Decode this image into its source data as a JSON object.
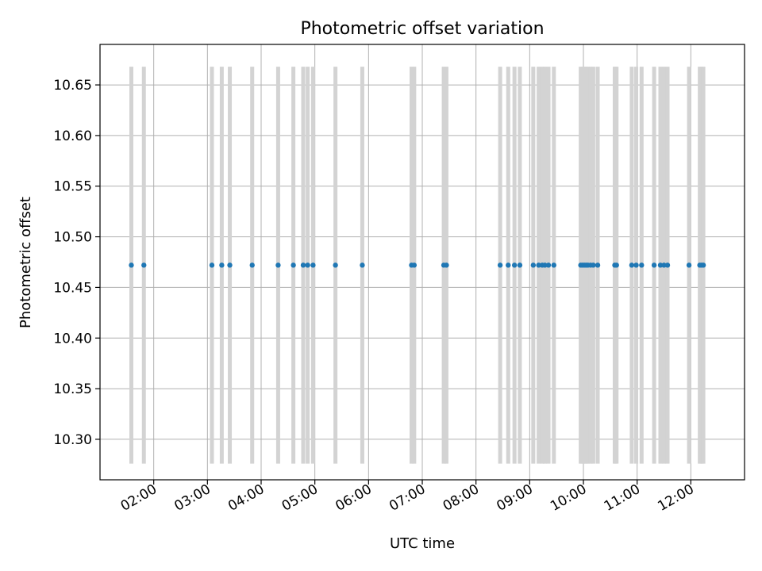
{
  "chart_data": {
    "type": "scatter",
    "title": "Photometric offset variation",
    "xlabel": "UTC time",
    "ylabel": "Photometric offset",
    "grid": true,
    "legend": "none",
    "xlim": [
      "01:00",
      "13:00"
    ],
    "ylim": [
      10.26,
      10.69
    ],
    "x_ticks": [
      "02:00",
      "03:00",
      "04:00",
      "05:00",
      "06:00",
      "07:00",
      "08:00",
      "09:00",
      "10:00",
      "11:00",
      "12:00"
    ],
    "y_ticks": [
      10.3,
      10.35,
      10.4,
      10.45,
      10.5,
      10.55,
      10.6,
      10.65
    ],
    "y_tick_labels": [
      "10.30",
      "10.35",
      "10.40",
      "10.45",
      "10.50",
      "10.55",
      "10.60",
      "10.65"
    ],
    "marker_color": "#1f77b4",
    "errorbar_color": "#d3d3d3",
    "series": [
      {
        "x": [
          "01:35",
          "01:49",
          "03:05",
          "03:16",
          "03:25",
          "03:50",
          "04:19",
          "04:36",
          "04:47",
          "04:52",
          "04:58",
          "05:23",
          "05:53",
          "06:48",
          "06:51",
          "07:24",
          "07:27",
          "08:27",
          "08:36",
          "08:43",
          "08:49",
          "09:04",
          "09:10",
          "09:14",
          "09:17",
          "09:21",
          "09:27",
          "09:57",
          "09:59",
          "10:01",
          "10:03",
          "10:05",
          "10:08",
          "10:11",
          "10:16",
          "10:35",
          "10:37",
          "10:54",
          "10:59",
          "11:05",
          "11:19",
          "11:26",
          "11:30",
          "11:34",
          "11:58",
          "12:10",
          "12:12",
          "12:14"
        ],
        "y": [
          10.472,
          10.472,
          10.472,
          10.472,
          10.472,
          10.472,
          10.472,
          10.472,
          10.472,
          10.472,
          10.472,
          10.472,
          10.472,
          10.472,
          10.472,
          10.472,
          10.472,
          10.472,
          10.472,
          10.472,
          10.472,
          10.472,
          10.472,
          10.472,
          10.472,
          10.472,
          10.472,
          10.472,
          10.472,
          10.472,
          10.472,
          10.472,
          10.472,
          10.472,
          10.472,
          10.472,
          10.472,
          10.472,
          10.472,
          10.472,
          10.472,
          10.472,
          10.472,
          10.472,
          10.472,
          10.472,
          10.472,
          10.472
        ],
        "yerr": 0.196
      }
    ]
  }
}
